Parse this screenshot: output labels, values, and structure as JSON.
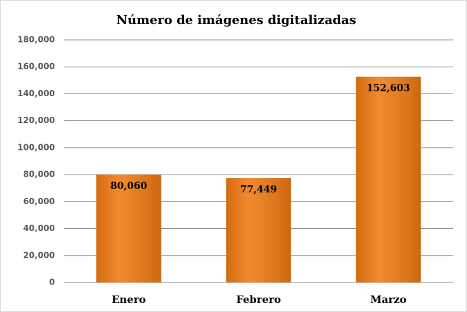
{
  "chart_data": {
    "type": "bar",
    "title": "Número de imágenes digitalizadas",
    "categories": [
      "Enero",
      "Febrero",
      "Marzo"
    ],
    "values": [
      80060,
      77449,
      152603
    ],
    "value_labels": [
      "80,060",
      "77,449",
      "152,603"
    ],
    "color": "#f07a12",
    "ylim": [
      0,
      180000
    ],
    "yticks": [
      0,
      {
        "value": 20000,
        "label": "20,000"
      },
      {
        "value": 40000,
        "label": "40,000"
      },
      {
        "value": 60000,
        "label": "60,000"
      },
      {
        "value": 80000,
        "label": "80,000"
      },
      {
        "value": 100000,
        "label": "100,000"
      },
      {
        "value": 120000,
        "label": "120,000"
      },
      {
        "value": 140000,
        "label": "140,000"
      },
      {
        "value": 160000,
        "label": "160,000"
      },
      {
        "value": 180000,
        "label": "180,000"
      }
    ],
    "grid": true
  }
}
